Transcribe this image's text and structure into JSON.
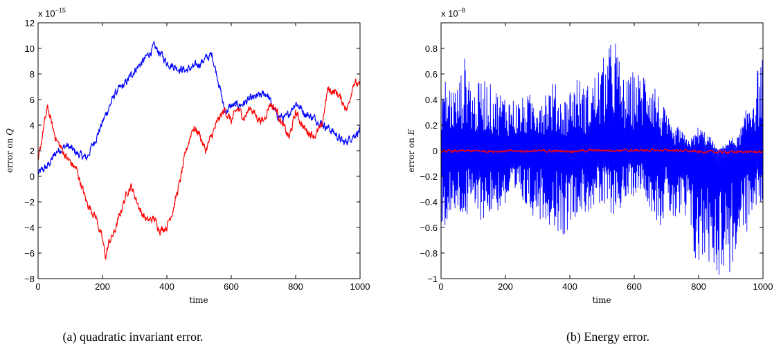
{
  "chart_data": [
    {
      "type": "line",
      "caption": "(a) quadratic invariant error.",
      "xlabel": "time",
      "ylabel_prefix": "error on ",
      "ylabel_symbol": "Q",
      "multiplier_base": "x 10",
      "multiplier_exp": "−15",
      "xlim": [
        0,
        1000
      ],
      "ylim": [
        -8,
        12
      ],
      "xticks": [
        0,
        200,
        400,
        600,
        800,
        1000
      ],
      "yticks": [
        -8,
        -6,
        -4,
        -2,
        0,
        2,
        4,
        6,
        8,
        10,
        12
      ],
      "grid": false,
      "noise": 0.25,
      "series": [
        {
          "color": "#0000ff",
          "x": [
            0,
            30,
            60,
            90,
            120,
            150,
            180,
            210,
            240,
            270,
            300,
            330,
            360,
            380,
            400,
            430,
            460,
            490,
            520,
            540,
            560,
            580,
            600,
            630,
            660,
            690,
            710,
            740,
            770,
            800,
            830,
            860,
            890,
            920,
            950,
            980,
            1000
          ],
          "y": [
            0.2,
            0.8,
            2.0,
            2.4,
            1.8,
            1.4,
            3.0,
            4.8,
            6.5,
            7.2,
            8.3,
            9.1,
            10.1,
            9.6,
            8.9,
            8.5,
            8.3,
            8.6,
            9.2,
            9.5,
            7.5,
            5.0,
            5.5,
            5.6,
            6.0,
            6.3,
            6.5,
            4.8,
            4.5,
            5.8,
            4.9,
            4.5,
            4.0,
            3.4,
            2.6,
            3.2,
            3.6
          ]
        },
        {
          "color": "#ff0000",
          "x": [
            0,
            15,
            30,
            45,
            60,
            90,
            120,
            150,
            180,
            200,
            210,
            220,
            240,
            260,
            280,
            290,
            300,
            320,
            340,
            360,
            380,
            400,
            420,
            440,
            460,
            480,
            500,
            520,
            540,
            560,
            580,
            600,
            620,
            640,
            660,
            680,
            700,
            720,
            740,
            760,
            780,
            800,
            830,
            860,
            880,
            900,
            930,
            960,
            980,
            1000
          ],
          "y": [
            1.0,
            3.5,
            5.4,
            3.8,
            2.7,
            1.4,
            0.5,
            -2.0,
            -3.2,
            -5.0,
            -6.3,
            -5.2,
            -4.2,
            -2.5,
            -1.0,
            -0.8,
            -1.5,
            -2.8,
            -3.5,
            -3.3,
            -4.2,
            -3.9,
            -2.5,
            -0.5,
            2.0,
            3.8,
            3.4,
            2.0,
            3.2,
            4.4,
            5.2,
            4.3,
            5.3,
            4.6,
            5.4,
            4.6,
            4.3,
            5.7,
            5.2,
            4.0,
            3.0,
            5.0,
            3.6,
            3.2,
            3.8,
            6.8,
            6.5,
            5.2,
            7.4,
            7.0
          ]
        }
      ]
    },
    {
      "type": "line",
      "caption": "(b) Energy error.",
      "xlabel": "time",
      "ylabel_prefix": "error on ",
      "ylabel_symbol": "E",
      "multiplier_base": "x 10",
      "multiplier_exp": "−8",
      "xlim": [
        0,
        1000
      ],
      "ylim": [
        -1,
        1
      ],
      "xticks": [
        0,
        200,
        400,
        600,
        800,
        1000
      ],
      "yticks": [
        -1,
        -0.8,
        -0.6,
        -0.4,
        -0.2,
        0,
        0.2,
        0.4,
        0.6,
        0.8
      ],
      "ytick_labels": [
        "−1",
        "−0.8",
        "−0.6",
        "−0.4",
        "−0.2",
        "0",
        "0.2",
        "0.4",
        "0.6",
        "0.8"
      ],
      "grid": false,
      "series": [
        {
          "color": "#0000ff",
          "oscillating": true,
          "x": [
            0,
            20,
            50,
            80,
            100,
            130,
            160,
            200,
            240,
            280,
            320,
            350,
            380,
            420,
            450,
            480,
            520,
            540,
            560,
            580,
            600,
            620,
            640,
            660,
            680,
            700,
            720,
            740,
            760,
            780,
            800,
            820,
            840,
            860,
            880,
            900,
            920,
            940,
            960,
            980,
            1000
          ],
          "upper": [
            0.62,
            0.55,
            0.5,
            0.8,
            0.45,
            0.6,
            0.5,
            0.45,
            0.4,
            0.45,
            0.5,
            0.55,
            0.4,
            0.6,
            0.5,
            0.62,
            0.8,
            0.96,
            0.6,
            0.55,
            0.65,
            0.6,
            0.72,
            0.6,
            0.4,
            0.3,
            0.15,
            0.2,
            0.1,
            0.1,
            0.2,
            0.15,
            0.1,
            0.0,
            0.05,
            0.1,
            0.1,
            0.25,
            0.45,
            0.62,
            0.8
          ],
          "lower": [
            -0.62,
            -0.6,
            -0.5,
            -0.55,
            -0.5,
            -0.55,
            -0.5,
            -0.45,
            -0.4,
            -0.5,
            -0.55,
            -0.6,
            -0.68,
            -0.5,
            -0.5,
            -0.45,
            -0.5,
            -0.5,
            -0.45,
            -0.4,
            -0.35,
            -0.3,
            -0.4,
            -0.5,
            -0.6,
            -0.5,
            -0.55,
            -0.6,
            -0.6,
            -0.8,
            -1.0,
            -0.85,
            -0.9,
            -1.0,
            -0.95,
            -0.98,
            -0.8,
            -0.7,
            -0.6,
            -0.45,
            -0.4
          ]
        },
        {
          "color": "#ff0000",
          "x": [
            0,
            100,
            200,
            300,
            400,
            500,
            600,
            700,
            750,
            800,
            850,
            900,
            950,
            1000
          ],
          "y": [
            -0.005,
            -0.003,
            -0.004,
            -0.002,
            -0.003,
            0.003,
            0.002,
            0.004,
            0.0,
            -0.008,
            -0.01,
            -0.01,
            -0.008,
            -0.01
          ]
        }
      ]
    }
  ]
}
